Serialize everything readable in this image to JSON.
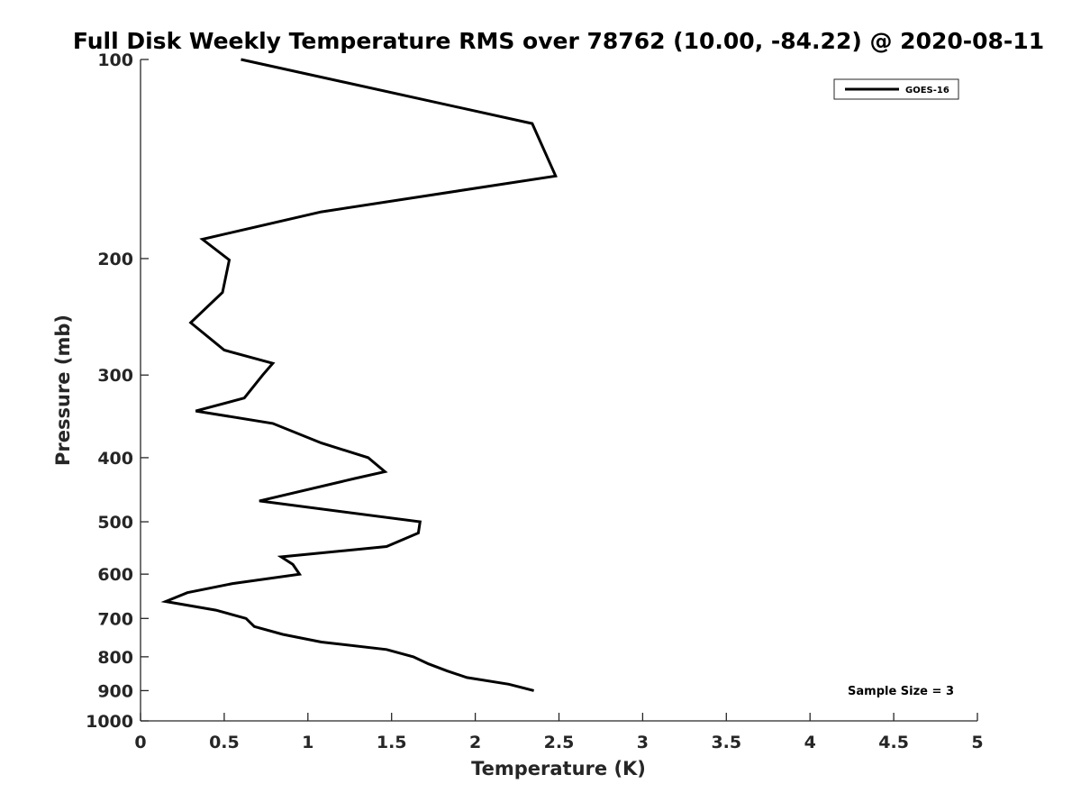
{
  "chart_data": {
    "type": "line",
    "title": "Full Disk Weekly Temperature RMS over 78762 (10.00, -84.22) @ 2020-08-11",
    "xlabel": "Temperature (K)",
    "ylabel": "Pressure (mb)",
    "xlim": [
      0,
      5
    ],
    "ylim": [
      100,
      1000
    ],
    "y_scale": "log",
    "y_reversed": true,
    "x_ticks": [
      0,
      0.5,
      1,
      1.5,
      2,
      2.5,
      3,
      3.5,
      4,
      4.5,
      5
    ],
    "x_tick_labels": [
      "0",
      "0.5",
      "1",
      "1.5",
      "2",
      "2.5",
      "3",
      "3.5",
      "4",
      "4.5",
      "5"
    ],
    "y_ticks": [
      100,
      200,
      300,
      400,
      500,
      600,
      700,
      800,
      900,
      1000
    ],
    "y_tick_labels": [
      "100",
      "200",
      "300",
      "400",
      "500",
      "600",
      "700",
      "800",
      "900",
      "1000"
    ],
    "grid": false,
    "legend_position": "top-right",
    "annotation": "Sample Size = 3",
    "series": [
      {
        "name": "GOES-16",
        "color": "#000000",
        "points": [
          {
            "x": 0.6,
            "p": 100
          },
          {
            "x": 2.34,
            "p": 125
          },
          {
            "x": 2.48,
            "p": 150
          },
          {
            "x": 1.08,
            "p": 170
          },
          {
            "x": 0.37,
            "p": 187
          },
          {
            "x": 0.53,
            "p": 201
          },
          {
            "x": 0.49,
            "p": 225
          },
          {
            "x": 0.3,
            "p": 250
          },
          {
            "x": 0.5,
            "p": 275
          },
          {
            "x": 0.79,
            "p": 288
          },
          {
            "x": 0.73,
            "p": 300
          },
          {
            "x": 0.62,
            "p": 325
          },
          {
            "x": 0.33,
            "p": 340
          },
          {
            "x": 0.79,
            "p": 355
          },
          {
            "x": 1.08,
            "p": 380
          },
          {
            "x": 1.36,
            "p": 400
          },
          {
            "x": 1.46,
            "p": 420
          },
          {
            "x": 1.28,
            "p": 430
          },
          {
            "x": 0.71,
            "p": 465
          },
          {
            "x": 1.67,
            "p": 500
          },
          {
            "x": 1.66,
            "p": 520
          },
          {
            "x": 1.47,
            "p": 545
          },
          {
            "x": 0.84,
            "p": 565
          },
          {
            "x": 0.91,
            "p": 580
          },
          {
            "x": 0.95,
            "p": 600
          },
          {
            "x": 0.55,
            "p": 620
          },
          {
            "x": 0.28,
            "p": 640
          },
          {
            "x": 0.15,
            "p": 660
          },
          {
            "x": 0.45,
            "p": 680
          },
          {
            "x": 0.63,
            "p": 700
          },
          {
            "x": 0.68,
            "p": 720
          },
          {
            "x": 0.85,
            "p": 740
          },
          {
            "x": 1.08,
            "p": 760
          },
          {
            "x": 1.47,
            "p": 780
          },
          {
            "x": 1.63,
            "p": 800
          },
          {
            "x": 1.72,
            "p": 820
          },
          {
            "x": 1.83,
            "p": 840
          },
          {
            "x": 1.95,
            "p": 860
          },
          {
            "x": 2.2,
            "p": 880
          },
          {
            "x": 2.35,
            "p": 900
          }
        ]
      }
    ]
  }
}
